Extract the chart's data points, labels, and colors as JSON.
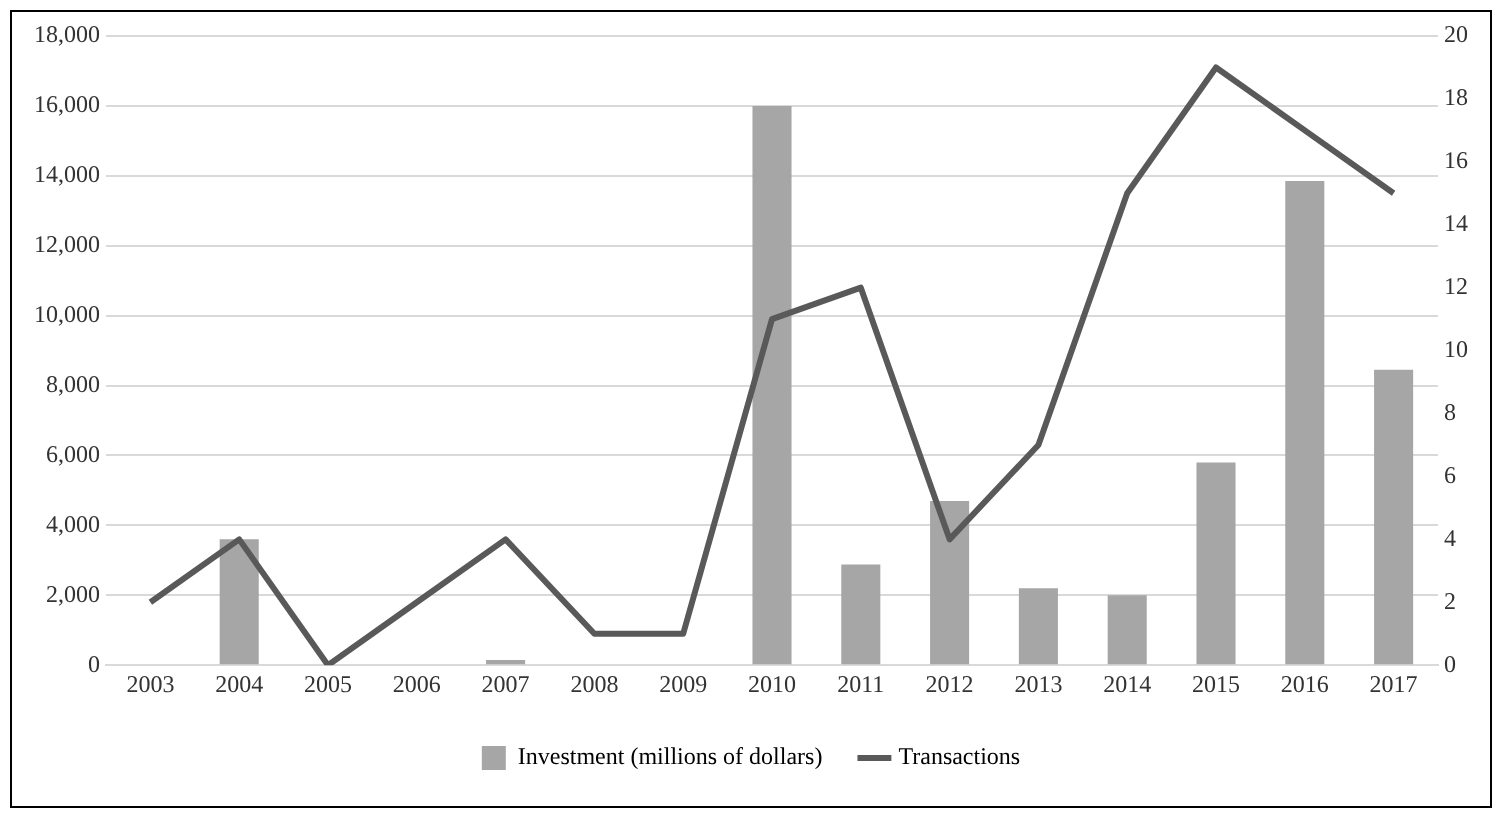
{
  "chart_data": {
    "type": "bar",
    "categories": [
      "2003",
      "2004",
      "2005",
      "2006",
      "2007",
      "2008",
      "2009",
      "2010",
      "2011",
      "2012",
      "2013",
      "2014",
      "2015",
      "2016",
      "2017"
    ],
    "series": [
      {
        "name": "Investment (millions of dollars)",
        "color": "#a6a6a6",
        "values": [
          0,
          3600,
          0,
          0,
          150,
          0,
          0,
          16000,
          2880,
          4700,
          2200,
          2000,
          5800,
          13850,
          8450
        ]
      },
      {
        "name": "Transactions",
        "type": "line",
        "axis": "y2",
        "color": "#595959",
        "values": [
          2,
          4,
          0,
          2,
          4,
          1,
          1,
          11,
          12,
          4,
          7,
          15,
          19,
          17,
          15
        ]
      }
    ],
    "ylim": [
      0,
      18000
    ],
    "yticks": [
      0,
      {
        "value": 2000,
        "label": "2,000"
      },
      {
        "value": 4000,
        "label": "4,000"
      },
      {
        "value": 6000,
        "label": "6,000"
      },
      {
        "value": 8000,
        "label": "8,000"
      },
      {
        "value": 10000,
        "label": "10,000"
      },
      {
        "value": 12000,
        "label": "12,000"
      },
      {
        "value": 14000,
        "label": "14,000"
      },
      {
        "value": 16000,
        "label": "16,000"
      },
      {
        "value": 18000,
        "label": "18,000"
      }
    ],
    "y2lim": [
      0,
      20
    ],
    "y2ticks": [
      0,
      2,
      4,
      6,
      8,
      10,
      12,
      14,
      16,
      18,
      20
    ],
    "grid": "y",
    "legend": "bottom",
    "marker": "none",
    "line_style": "solid"
  }
}
